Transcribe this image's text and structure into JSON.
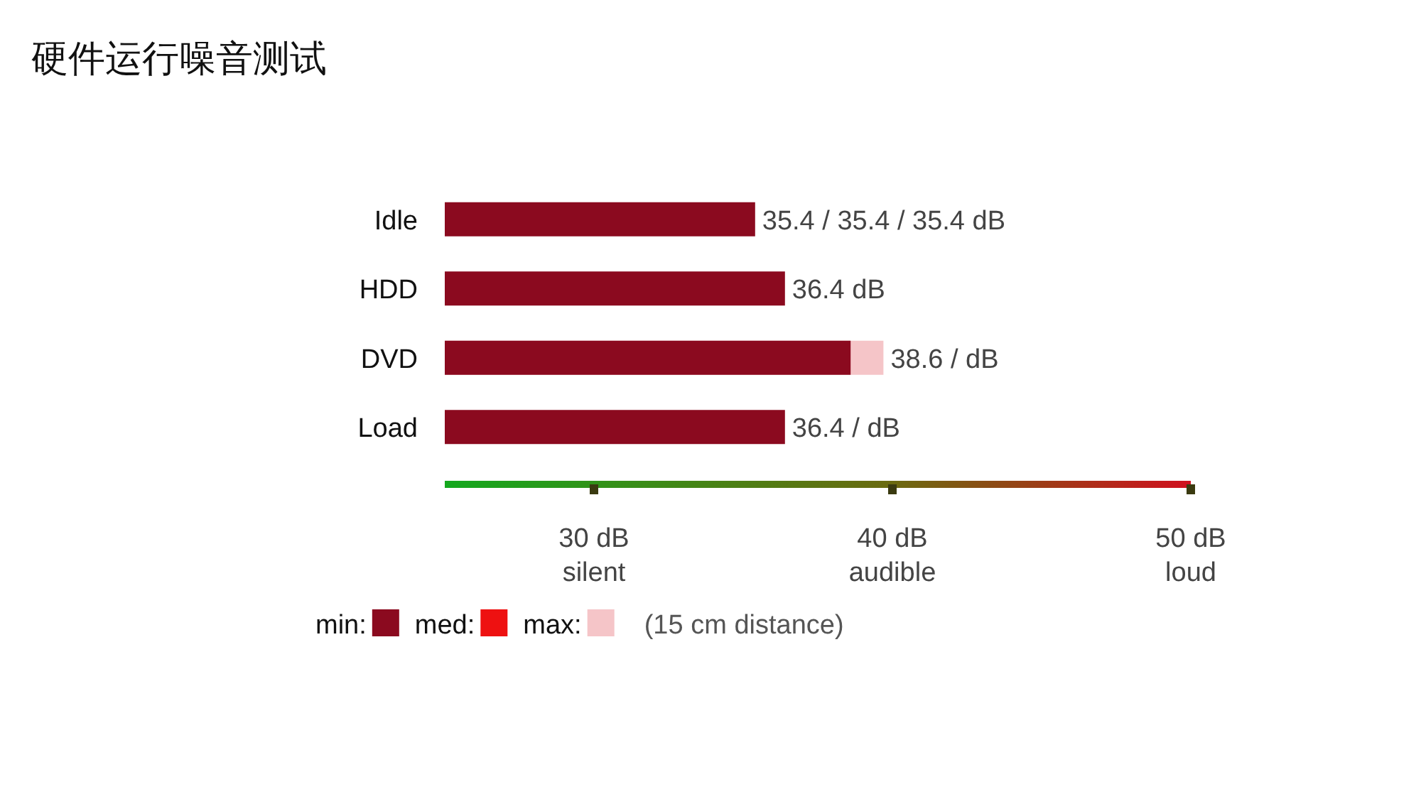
{
  "chart_data": {
    "type": "bar",
    "orientation": "horizontal",
    "title": "硬件运行噪音测试",
    "categories": [
      "Idle",
      "HDD",
      "DVD",
      "Load"
    ],
    "series": [
      {
        "name": "min:",
        "color": "#8b0a1f",
        "values": [
          35.4,
          36.4,
          38.6,
          36.4
        ],
        "value_labels": [
          "35.4 / 35.4 / 35.4 dB",
          "36.4 dB",
          "38.6 / dB",
          "36.4 / dB"
        ]
      },
      {
        "name": "med:",
        "color": "#ee1111",
        "values": [
          null,
          null,
          null,
          null
        ]
      },
      {
        "name": "max:",
        "color": "#f5c5c8",
        "values": [
          null,
          null,
          39.7,
          null
        ]
      }
    ],
    "xlim": [
      25,
      50
    ],
    "xticks": [
      {
        "value": 30,
        "label": "30 dB\nsilent"
      },
      {
        "value": 40,
        "label": "40 dB\naudible"
      },
      {
        "value": 50,
        "label": "50 dB\nloud"
      }
    ],
    "legend": "bottom",
    "annotations": [
      "(15 cm distance)"
    ]
  }
}
